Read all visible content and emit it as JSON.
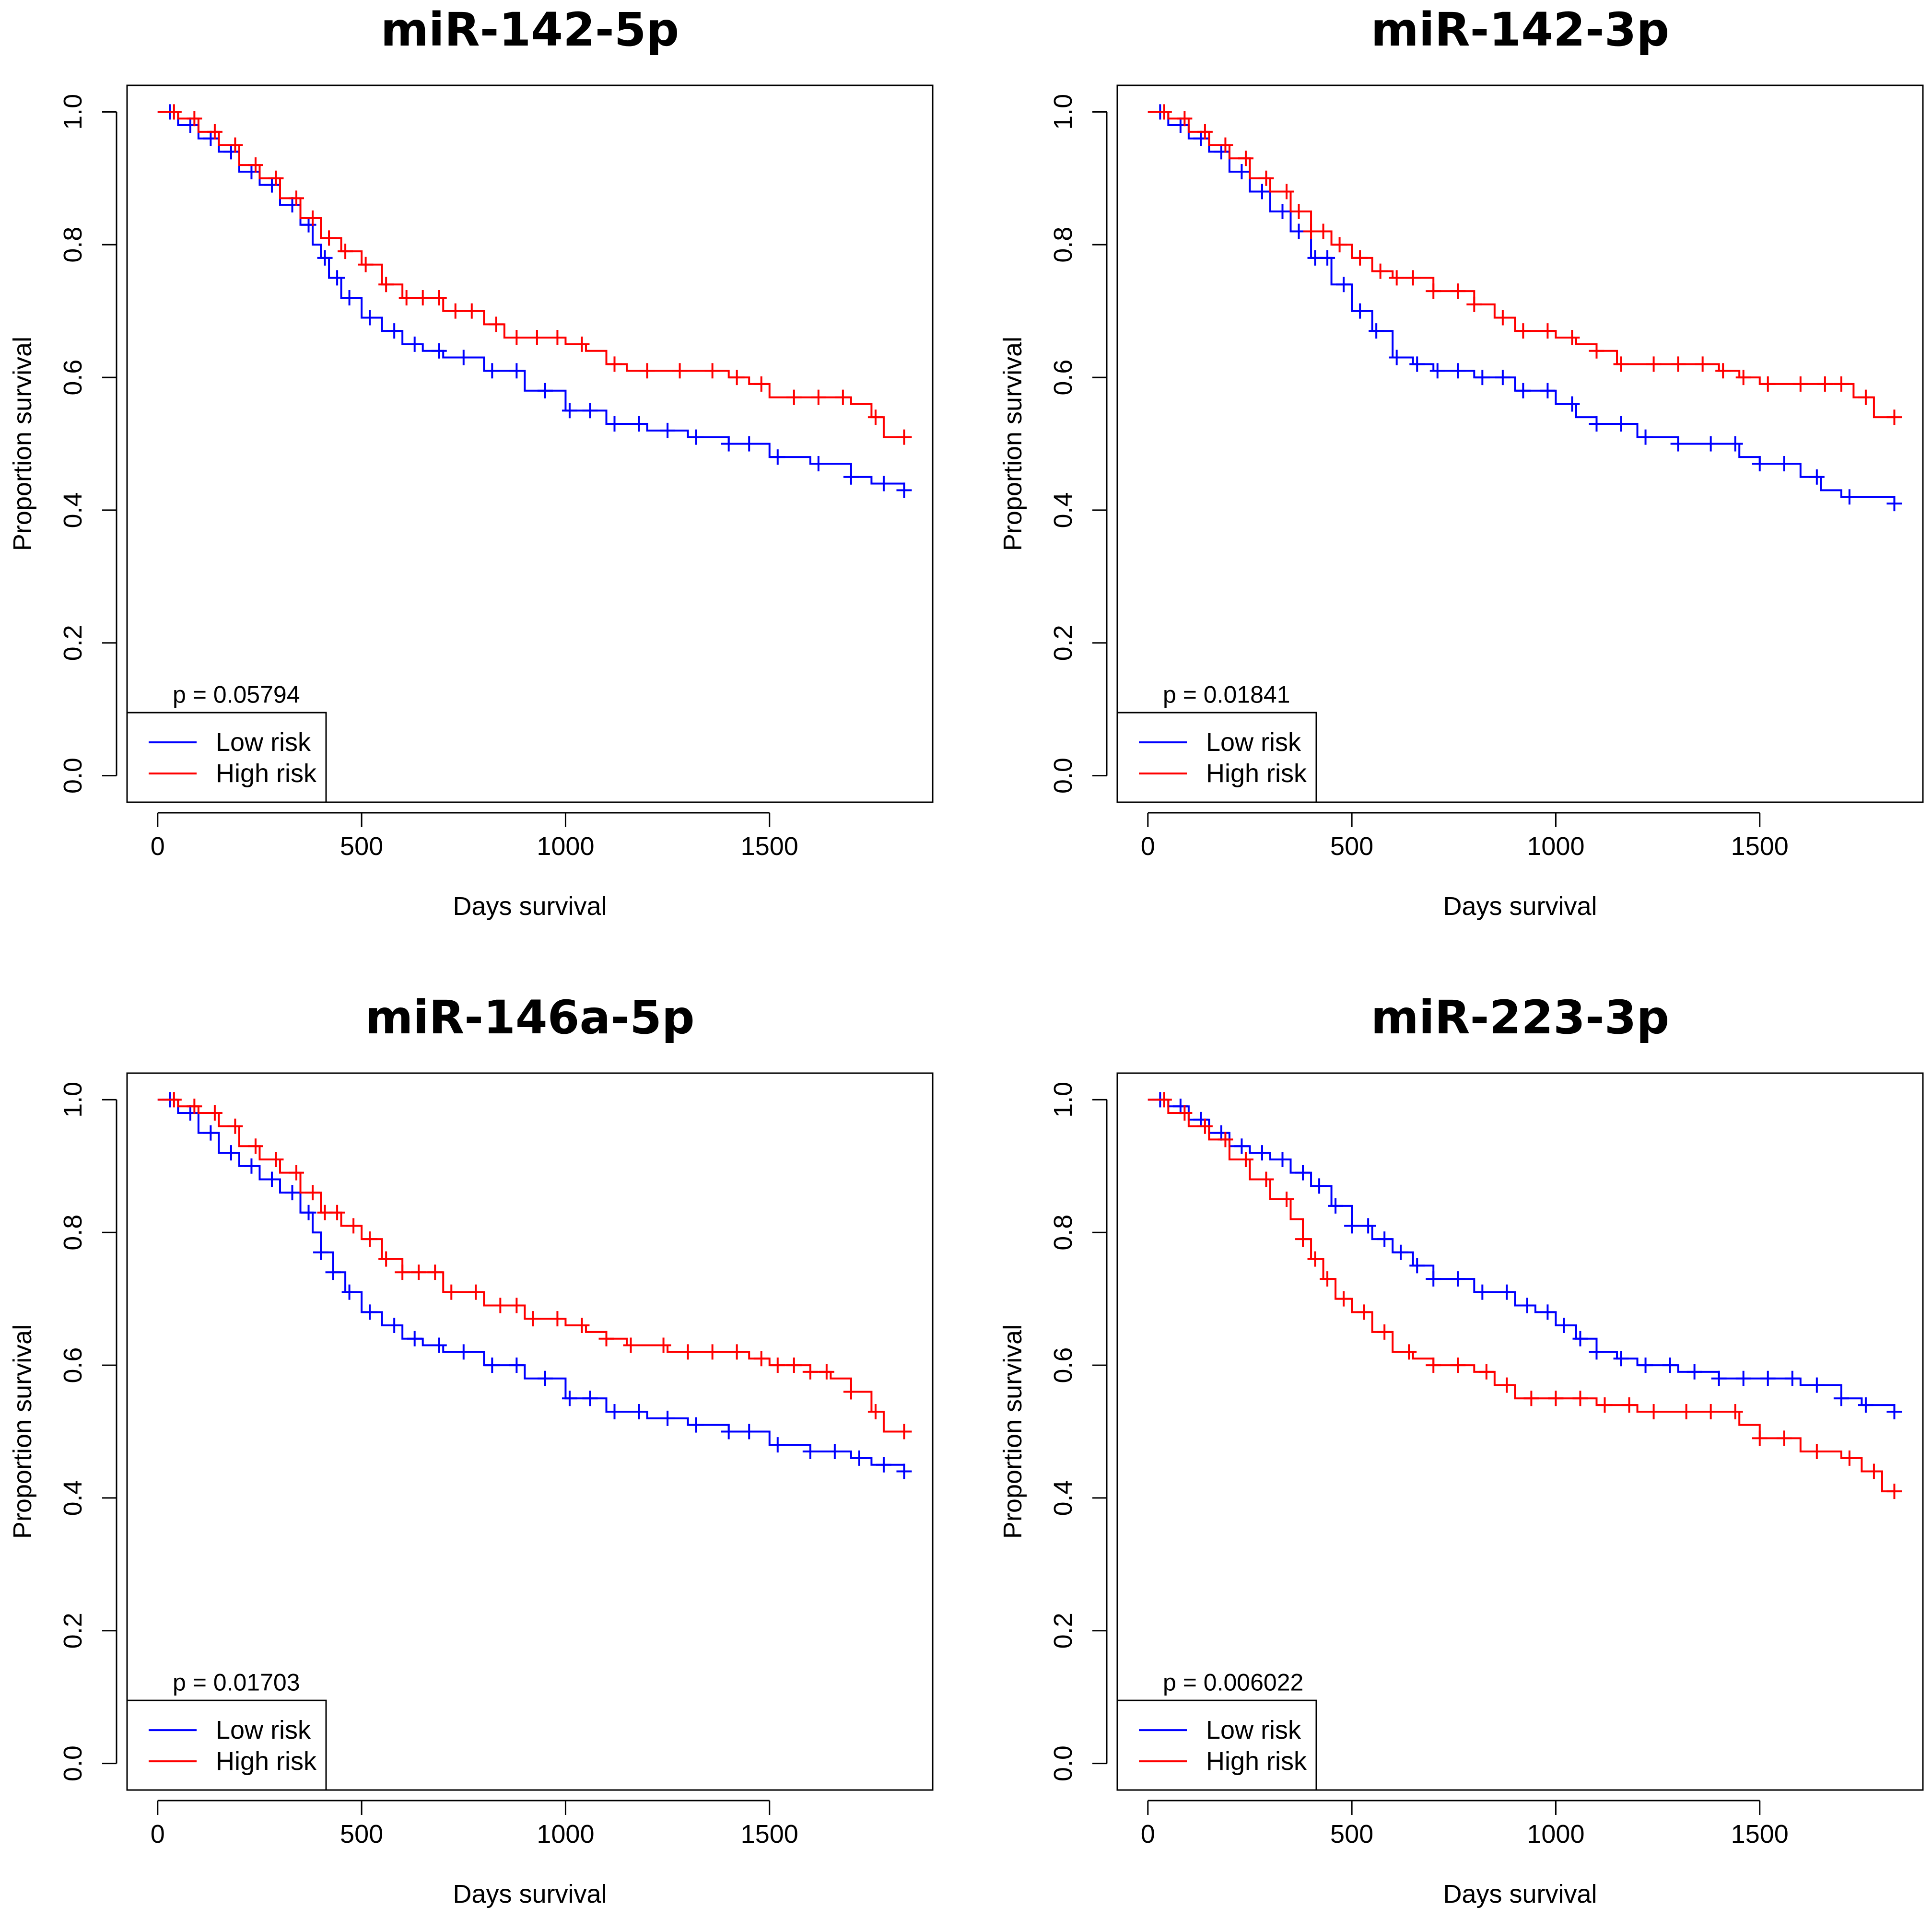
{
  "colors": {
    "low": "#0000ff",
    "high": "#ff0000",
    "axis": "#000000"
  },
  "chart_data": [
    {
      "type": "line",
      "title": "miR-142-5p",
      "xlabel": "Days survival",
      "ylabel": "Proportion survival",
      "xlim": [
        -75,
        1900
      ],
      "ylim": [
        -0.04,
        1.04
      ],
      "xticks": [
        0,
        500,
        1000,
        1500
      ],
      "yticks": [
        0.0,
        0.2,
        0.4,
        0.6,
        0.8,
        1.0
      ],
      "xtick_labels": [
        "0",
        "500",
        "1000",
        "1500"
      ],
      "ytick_labels": [
        "0.0",
        "0.2",
        "0.4",
        "0.6",
        "0.8",
        "1.0"
      ],
      "pvalue": "p = 0.05794",
      "legend": {
        "position": "bottom-left",
        "entries": [
          "Low risk",
          "High risk"
        ]
      },
      "series": [
        {
          "name": "Low risk",
          "color": "#0000ff",
          "x": [
            0,
            50,
            100,
            150,
            200,
            250,
            300,
            350,
            380,
            400,
            420,
            450,
            500,
            550,
            600,
            650,
            700,
            800,
            900,
            1000,
            1100,
            1200,
            1300,
            1400,
            1500,
            1600,
            1700,
            1750,
            1830
          ],
          "y": [
            1.0,
            0.98,
            0.96,
            0.94,
            0.91,
            0.89,
            0.86,
            0.83,
            0.8,
            0.78,
            0.75,
            0.72,
            0.69,
            0.67,
            0.65,
            0.64,
            0.63,
            0.61,
            0.58,
            0.55,
            0.53,
            0.52,
            0.51,
            0.5,
            0.48,
            0.47,
            0.45,
            0.44,
            0.43
          ],
          "censor": [
            30,
            80,
            130,
            180,
            230,
            280,
            330,
            370,
            410,
            440,
            470,
            520,
            580,
            630,
            690,
            750,
            820,
            880,
            950,
            1010,
            1060,
            1120,
            1180,
            1250,
            1320,
            1400,
            1450,
            1520,
            1620,
            1700,
            1780,
            1830
          ]
        },
        {
          "name": "High risk",
          "color": "#ff0000",
          "x": [
            0,
            50,
            100,
            150,
            200,
            250,
            300,
            350,
            400,
            450,
            500,
            550,
            600,
            700,
            800,
            850,
            900,
            1000,
            1050,
            1100,
            1150,
            1250,
            1350,
            1400,
            1450,
            1500,
            1600,
            1700,
            1750,
            1780,
            1830
          ],
          "y": [
            1.0,
            0.99,
            0.97,
            0.95,
            0.92,
            0.9,
            0.87,
            0.84,
            0.81,
            0.79,
            0.77,
            0.74,
            0.72,
            0.7,
            0.68,
            0.66,
            0.66,
            0.65,
            0.64,
            0.62,
            0.61,
            0.61,
            0.61,
            0.6,
            0.59,
            0.57,
            0.57,
            0.56,
            0.54,
            0.51,
            0.51
          ],
          "censor": [
            40,
            90,
            140,
            190,
            240,
            290,
            340,
            380,
            420,
            460,
            510,
            560,
            610,
            650,
            690,
            730,
            770,
            830,
            880,
            930,
            980,
            1040,
            1120,
            1200,
            1280,
            1360,
            1420,
            1480,
            1560,
            1620,
            1680,
            1760,
            1830
          ]
        }
      ]
    },
    {
      "type": "line",
      "title": "miR-142-3p",
      "xlabel": "Days survival",
      "ylabel": "Proportion survival",
      "xlim": [
        -75,
        1900
      ],
      "ylim": [
        -0.04,
        1.04
      ],
      "xticks": [
        0,
        500,
        1000,
        1500
      ],
      "yticks": [
        0.0,
        0.2,
        0.4,
        0.6,
        0.8,
        1.0
      ],
      "xtick_labels": [
        "0",
        "500",
        "1000",
        "1500"
      ],
      "ytick_labels": [
        "0.0",
        "0.2",
        "0.4",
        "0.6",
        "0.8",
        "1.0"
      ],
      "pvalue": "p = 0.01841",
      "legend": {
        "position": "bottom-left",
        "entries": [
          "Low risk",
          "High risk"
        ]
      },
      "series": [
        {
          "name": "Low risk",
          "color": "#0000ff",
          "x": [
            0,
            50,
            100,
            150,
            200,
            250,
            300,
            350,
            400,
            450,
            500,
            550,
            600,
            650,
            700,
            800,
            900,
            1000,
            1050,
            1100,
            1200,
            1300,
            1400,
            1450,
            1500,
            1600,
            1650,
            1700,
            1830
          ],
          "y": [
            1.0,
            0.98,
            0.96,
            0.94,
            0.91,
            0.88,
            0.85,
            0.82,
            0.78,
            0.74,
            0.7,
            0.67,
            0.63,
            0.62,
            0.61,
            0.6,
            0.58,
            0.56,
            0.54,
            0.53,
            0.51,
            0.5,
            0.5,
            0.48,
            0.47,
            0.45,
            0.43,
            0.42,
            0.41
          ],
          "censor": [
            30,
            80,
            130,
            180,
            230,
            280,
            330,
            370,
            410,
            440,
            480,
            520,
            560,
            610,
            660,
            710,
            760,
            820,
            870,
            920,
            980,
            1040,
            1100,
            1160,
            1220,
            1300,
            1380,
            1440,
            1500,
            1560,
            1640,
            1720,
            1830
          ]
        },
        {
          "name": "High risk",
          "color": "#ff0000",
          "x": [
            0,
            50,
            100,
            150,
            200,
            250,
            300,
            350,
            400,
            450,
            500,
            550,
            600,
            700,
            800,
            850,
            900,
            1000,
            1050,
            1100,
            1150,
            1250,
            1350,
            1400,
            1450,
            1500,
            1700,
            1730,
            1780,
            1830
          ],
          "y": [
            1.0,
            0.99,
            0.97,
            0.95,
            0.93,
            0.9,
            0.88,
            0.85,
            0.82,
            0.8,
            0.78,
            0.76,
            0.75,
            0.73,
            0.71,
            0.69,
            0.67,
            0.66,
            0.65,
            0.64,
            0.62,
            0.62,
            0.62,
            0.61,
            0.6,
            0.59,
            0.59,
            0.57,
            0.54,
            0.54
          ],
          "censor": [
            40,
            90,
            140,
            190,
            240,
            290,
            340,
            370,
            400,
            430,
            470,
            520,
            570,
            610,
            650,
            700,
            760,
            800,
            870,
            920,
            980,
            1040,
            1100,
            1160,
            1240,
            1300,
            1360,
            1410,
            1460,
            1520,
            1600,
            1660,
            1700,
            1760,
            1830
          ]
        }
      ]
    },
    {
      "type": "line",
      "title": "miR-146a-5p",
      "xlabel": "Days survival",
      "ylabel": "Proportion survival",
      "xlim": [
        -75,
        1900
      ],
      "ylim": [
        -0.04,
        1.04
      ],
      "xticks": [
        0,
        500,
        1000,
        1500
      ],
      "yticks": [
        0.0,
        0.2,
        0.4,
        0.6,
        0.8,
        1.0
      ],
      "xtick_labels": [
        "0",
        "500",
        "1000",
        "1500"
      ],
      "ytick_labels": [
        "0.0",
        "0.2",
        "0.4",
        "0.6",
        "0.8",
        "1.0"
      ],
      "pvalue": "p = 0.01703",
      "legend": {
        "position": "bottom-left",
        "entries": [
          "Low risk",
          "High risk"
        ]
      },
      "series": [
        {
          "name": "Low risk",
          "color": "#0000ff",
          "x": [
            0,
            50,
            100,
            150,
            200,
            250,
            300,
            350,
            380,
            400,
            430,
            460,
            500,
            550,
            600,
            650,
            700,
            800,
            900,
            1000,
            1100,
            1200,
            1300,
            1400,
            1500,
            1600,
            1700,
            1750,
            1830
          ],
          "y": [
            1.0,
            0.98,
            0.95,
            0.92,
            0.9,
            0.88,
            0.86,
            0.83,
            0.8,
            0.77,
            0.74,
            0.71,
            0.68,
            0.66,
            0.64,
            0.63,
            0.62,
            0.6,
            0.58,
            0.55,
            0.53,
            0.52,
            0.51,
            0.5,
            0.48,
            0.47,
            0.46,
            0.45,
            0.44
          ],
          "censor": [
            30,
            80,
            130,
            180,
            230,
            280,
            330,
            370,
            400,
            430,
            470,
            520,
            580,
            630,
            690,
            750,
            820,
            880,
            950,
            1010,
            1060,
            1120,
            1180,
            1250,
            1320,
            1400,
            1450,
            1520,
            1600,
            1660,
            1720,
            1780,
            1830
          ]
        },
        {
          "name": "High risk",
          "color": "#ff0000",
          "x": [
            0,
            50,
            100,
            150,
            200,
            250,
            300,
            350,
            400,
            450,
            500,
            550,
            600,
            700,
            800,
            900,
            1000,
            1050,
            1100,
            1150,
            1250,
            1350,
            1450,
            1500,
            1600,
            1650,
            1700,
            1750,
            1780,
            1830
          ],
          "y": [
            1.0,
            0.99,
            0.98,
            0.96,
            0.93,
            0.91,
            0.89,
            0.86,
            0.83,
            0.81,
            0.79,
            0.76,
            0.74,
            0.71,
            0.69,
            0.67,
            0.66,
            0.65,
            0.64,
            0.63,
            0.62,
            0.62,
            0.61,
            0.6,
            0.59,
            0.58,
            0.56,
            0.53,
            0.5,
            0.5
          ],
          "censor": [
            40,
            90,
            140,
            190,
            240,
            290,
            340,
            380,
            410,
            440,
            480,
            520,
            560,
            600,
            640,
            680,
            720,
            780,
            840,
            880,
            920,
            980,
            1040,
            1100,
            1160,
            1240,
            1300,
            1360,
            1420,
            1480,
            1520,
            1560,
            1600,
            1640,
            1700,
            1760,
            1830
          ]
        }
      ]
    },
    {
      "type": "line",
      "title": "miR-223-3p",
      "xlabel": "Days survival",
      "ylabel": "Proportion survival",
      "xlim": [
        -75,
        1900
      ],
      "ylim": [
        -0.04,
        1.04
      ],
      "xticks": [
        0,
        500,
        1000,
        1500
      ],
      "yticks": [
        0.0,
        0.2,
        0.4,
        0.6,
        0.8,
        1.0
      ],
      "xtick_labels": [
        "0",
        "500",
        "1000",
        "1500"
      ],
      "ytick_labels": [
        "0.0",
        "0.2",
        "0.4",
        "0.6",
        "0.8",
        "1.0"
      ],
      "pvalue": "p = 0.006022",
      "legend": {
        "position": "bottom-left",
        "entries": [
          "Low risk",
          "High risk"
        ]
      },
      "series": [
        {
          "name": "Low risk",
          "color": "#0000ff",
          "x": [
            0,
            50,
            100,
            150,
            200,
            250,
            300,
            350,
            400,
            450,
            500,
            550,
            600,
            650,
            700,
            800,
            900,
            950,
            1000,
            1050,
            1100,
            1150,
            1200,
            1300,
            1400,
            1500,
            1600,
            1700,
            1750,
            1830
          ],
          "y": [
            1.0,
            0.99,
            0.97,
            0.95,
            0.93,
            0.92,
            0.91,
            0.89,
            0.87,
            0.84,
            0.81,
            0.79,
            0.77,
            0.75,
            0.73,
            0.71,
            0.69,
            0.68,
            0.66,
            0.64,
            0.62,
            0.61,
            0.6,
            0.59,
            0.58,
            0.58,
            0.57,
            0.55,
            0.54,
            0.53
          ],
          "censor": [
            30,
            80,
            130,
            180,
            230,
            280,
            330,
            380,
            420,
            460,
            500,
            540,
            580,
            620,
            660,
            700,
            760,
            820,
            880,
            930,
            980,
            1020,
            1060,
            1100,
            1160,
            1220,
            1280,
            1340,
            1400,
            1460,
            1520,
            1580,
            1640,
            1700,
            1760,
            1830
          ]
        },
        {
          "name": "High risk",
          "color": "#ff0000",
          "x": [
            0,
            50,
            100,
            150,
            200,
            250,
            300,
            350,
            380,
            400,
            430,
            460,
            500,
            550,
            600,
            650,
            700,
            800,
            850,
            900,
            1000,
            1100,
            1200,
            1300,
            1400,
            1450,
            1500,
            1600,
            1700,
            1750,
            1800,
            1830
          ],
          "y": [
            1.0,
            0.98,
            0.96,
            0.94,
            0.91,
            0.88,
            0.85,
            0.82,
            0.79,
            0.76,
            0.73,
            0.7,
            0.68,
            0.65,
            0.62,
            0.61,
            0.6,
            0.59,
            0.57,
            0.55,
            0.55,
            0.54,
            0.53,
            0.53,
            0.53,
            0.51,
            0.49,
            0.47,
            0.46,
            0.44,
            0.41,
            0.41
          ],
          "censor": [
            40,
            90,
            140,
            190,
            240,
            290,
            340,
            380,
            410,
            440,
            480,
            530,
            580,
            640,
            700,
            760,
            830,
            880,
            940,
            1000,
            1060,
            1120,
            1180,
            1240,
            1320,
            1380,
            1440,
            1500,
            1560,
            1640,
            1720,
            1780,
            1830
          ]
        }
      ]
    }
  ]
}
